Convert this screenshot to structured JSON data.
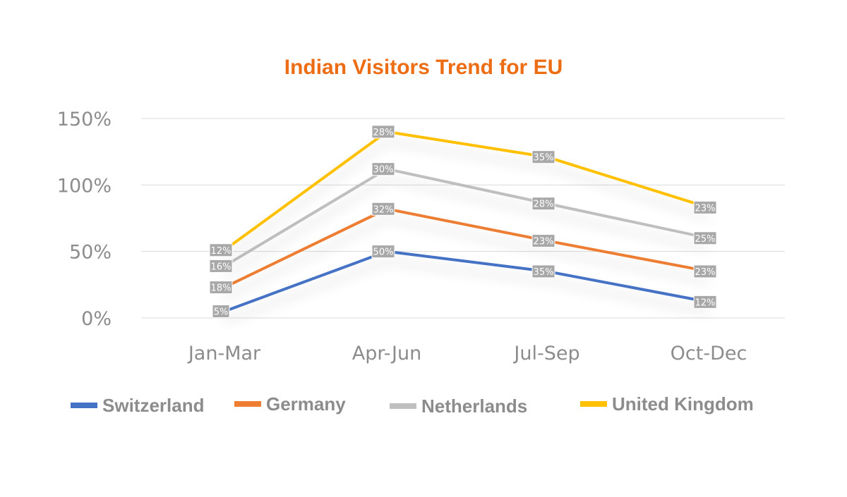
{
  "chart_data": {
    "type": "line",
    "stacked": true,
    "title": "Indian Visitors Trend for EU",
    "title_color": "#ED6D14",
    "categories": [
      "Jan-Mar",
      "Apr-Jun",
      "Jul-Sep",
      "Oct-Dec"
    ],
    "y_ticks": [
      "0%",
      "50%",
      "100%",
      "150%"
    ],
    "ylim": [
      0,
      150
    ],
    "grid": true,
    "legend_position": "bottom",
    "series": [
      {
        "name": "Switzerland",
        "color": "#4472C4",
        "values": [
          5,
          50,
          35,
          12
        ],
        "labels": [
          "5%",
          "50%",
          "35%",
          "12%"
        ]
      },
      {
        "name": "Germany",
        "color": "#ED7D31",
        "values": [
          18,
          32,
          23,
          23
        ],
        "labels": [
          "18%",
          "32%",
          "23%",
          "23%"
        ]
      },
      {
        "name": "Netherlands",
        "color": "#BFBFBF",
        "values": [
          16,
          30,
          28,
          25
        ],
        "labels": [
          "16%",
          "30%",
          "28%",
          "25%"
        ]
      },
      {
        "name": "United Kingdom",
        "color": "#FFC000",
        "values": [
          12,
          28,
          35,
          23
        ],
        "labels": [
          "12%",
          "28%",
          "35%",
          "23%"
        ]
      }
    ]
  }
}
